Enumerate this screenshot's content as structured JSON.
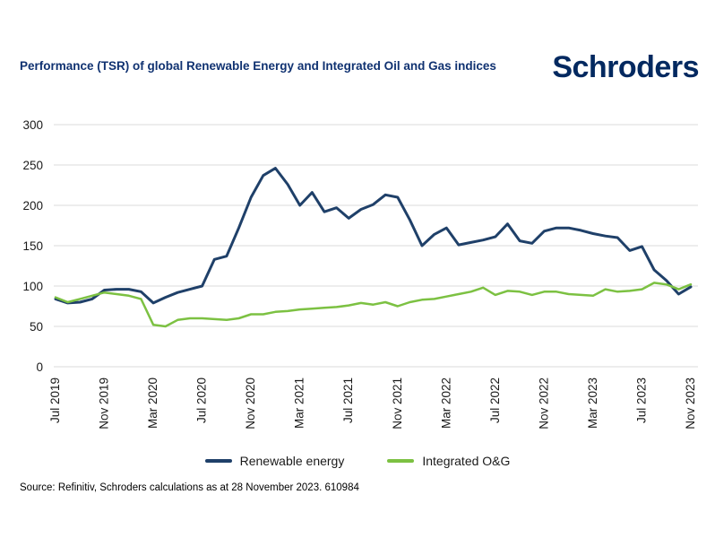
{
  "header": {
    "logo_text": "Schroders"
  },
  "chart_data": {
    "type": "line",
    "title": "Performance (TSR) of global Renewable Energy and Integrated Oil and Gas indices",
    "xlabel": "",
    "ylabel": "",
    "ylim": [
      0,
      300
    ],
    "y_ticks": [
      0,
      50,
      100,
      150,
      200,
      250,
      300
    ],
    "grid": "horizontal",
    "legend_position": "bottom",
    "x_unit": "month",
    "months_total": 53,
    "x_tick_every_n_months": 4,
    "x_tick_labels": [
      "Jul 2019",
      "Nov 2019",
      "Mar 2020",
      "Jul 2020",
      "Nov 2020",
      "Mar 2021",
      "Jul 2021",
      "Nov 2021",
      "Mar 2022",
      "Jul 2022",
      "Nov 2022",
      "Mar 2023",
      "Jul 2023",
      "Nov 2023"
    ],
    "series": [
      {
        "name": "Renewable energy",
        "color": "#1f4069",
        "values": [
          84,
          79,
          80,
          84,
          95,
          96,
          96,
          93,
          79,
          86,
          92,
          96,
          100,
          133,
          137,
          172,
          210,
          237,
          246,
          226,
          200,
          216,
          192,
          197,
          184,
          195,
          201,
          213,
          210,
          182,
          150,
          164,
          172,
          151,
          154,
          157,
          161,
          177,
          156,
          153,
          168,
          172,
          172,
          169,
          165,
          162,
          160,
          144,
          149,
          120,
          107,
          90,
          99
        ]
      },
      {
        "name": "Integrated O&G",
        "color": "#7cc142",
        "values": [
          86,
          80,
          84,
          88,
          92,
          90,
          88,
          84,
          52,
          50,
          58,
          60,
          60,
          59,
          58,
          60,
          65,
          65,
          68,
          69,
          71,
          72,
          73,
          74,
          76,
          79,
          77,
          80,
          75,
          80,
          83,
          84,
          87,
          90,
          93,
          98,
          89,
          94,
          93,
          89,
          93,
          93,
          90,
          89,
          88,
          96,
          93,
          94,
          96,
          104,
          102,
          96,
          102
        ]
      }
    ]
  },
  "footer": {
    "source_text": "Source: Refinitiv, Schroders calculations as at 28 November 2023. 610984"
  },
  "colors": {
    "title": "#103271",
    "logo": "#032960",
    "gridline": "#e2e2e2",
    "axis_text": "#1a1a1a",
    "background": "#ffffff"
  }
}
